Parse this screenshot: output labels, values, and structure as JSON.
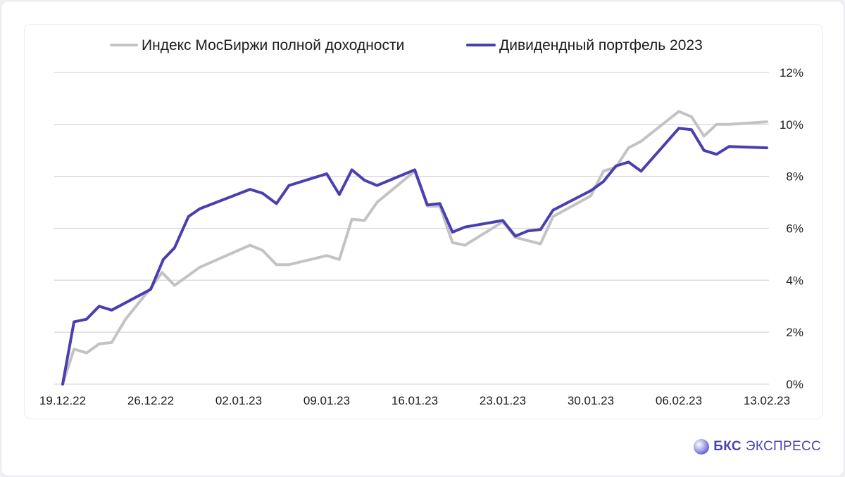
{
  "brand": {
    "name_bold": "БКС",
    "name_rest": "ЭКСПРЕСС"
  },
  "chart_data": {
    "type": "line",
    "title": "",
    "xlabel": "",
    "ylabel": "",
    "x_ticks": [
      "19.12.22",
      "26.12.22",
      "02.01.23",
      "09.01.23",
      "16.01.23",
      "23.01.23",
      "30.01.23",
      "06.02.23",
      "13.02.23"
    ],
    "x_range_days": [
      0,
      56
    ],
    "y_ticks": [
      "0%",
      "2%",
      "4%",
      "6%",
      "8%",
      "10%",
      "12%"
    ],
    "ylim": [
      0,
      12
    ],
    "y_axis_side": "right",
    "grid": "horizontal",
    "legend_position": "top",
    "series": [
      {
        "name": "Индекс МосБиржи полной доходности",
        "color": "#c3c3c3",
        "points": [
          [
            0,
            0.0
          ],
          [
            0.9,
            1.35
          ],
          [
            1.9,
            1.2
          ],
          [
            2.9,
            1.55
          ],
          [
            3.9,
            1.6
          ],
          [
            5.0,
            2.5
          ],
          [
            7.0,
            3.7
          ],
          [
            7.9,
            4.3
          ],
          [
            8.9,
            3.8
          ],
          [
            10.9,
            4.5
          ],
          [
            14.9,
            5.35
          ],
          [
            15.9,
            5.15
          ],
          [
            17.0,
            4.6
          ],
          [
            18.0,
            4.6
          ],
          [
            21.0,
            4.95
          ],
          [
            22.0,
            4.8
          ],
          [
            23.0,
            6.35
          ],
          [
            24.0,
            6.3
          ],
          [
            25.0,
            7.0
          ],
          [
            28.0,
            8.2
          ],
          [
            29.0,
            6.85
          ],
          [
            30.0,
            6.85
          ],
          [
            31.0,
            5.45
          ],
          [
            32.0,
            5.35
          ],
          [
            35.0,
            6.25
          ],
          [
            36.0,
            5.65
          ],
          [
            38.0,
            5.4
          ],
          [
            39.0,
            6.45
          ],
          [
            42.0,
            7.25
          ],
          [
            43.0,
            8.2
          ],
          [
            44.0,
            8.35
          ],
          [
            45.0,
            9.1
          ],
          [
            46.0,
            9.35
          ],
          [
            49.0,
            10.5
          ],
          [
            50.0,
            10.3
          ],
          [
            51.0,
            9.55
          ],
          [
            52.0,
            10.0
          ],
          [
            53.0,
            10.0
          ],
          [
            56.0,
            10.1
          ]
        ]
      },
      {
        "name": "Дивидендный портфель 2023",
        "color": "#4a3fb0",
        "points": [
          [
            0,
            0.0
          ],
          [
            0.9,
            2.4
          ],
          [
            1.9,
            2.5
          ],
          [
            2.9,
            3.0
          ],
          [
            3.9,
            2.85
          ],
          [
            7.0,
            3.65
          ],
          [
            8.0,
            4.8
          ],
          [
            8.9,
            5.25
          ],
          [
            10.0,
            6.45
          ],
          [
            10.9,
            6.75
          ],
          [
            14.9,
            7.5
          ],
          [
            15.9,
            7.35
          ],
          [
            17.0,
            6.95
          ],
          [
            18.0,
            7.65
          ],
          [
            21.0,
            8.1
          ],
          [
            22.0,
            7.3
          ],
          [
            23.0,
            8.25
          ],
          [
            24.0,
            7.85
          ],
          [
            25.0,
            7.65
          ],
          [
            28.0,
            8.25
          ],
          [
            29.0,
            6.9
          ],
          [
            30.0,
            6.95
          ],
          [
            31.0,
            5.85
          ],
          [
            32.0,
            6.05
          ],
          [
            35.0,
            6.3
          ],
          [
            36.0,
            5.7
          ],
          [
            37.0,
            5.9
          ],
          [
            38.0,
            5.95
          ],
          [
            39.0,
            6.7
          ],
          [
            42.0,
            7.45
          ],
          [
            43.0,
            7.8
          ],
          [
            44.0,
            8.4
          ],
          [
            45.0,
            8.55
          ],
          [
            46.0,
            8.2
          ],
          [
            49.0,
            9.85
          ],
          [
            50.0,
            9.8
          ],
          [
            51.0,
            9.0
          ],
          [
            52.0,
            8.85
          ],
          [
            53.0,
            9.15
          ],
          [
            56.0,
            9.1
          ]
        ]
      }
    ]
  }
}
